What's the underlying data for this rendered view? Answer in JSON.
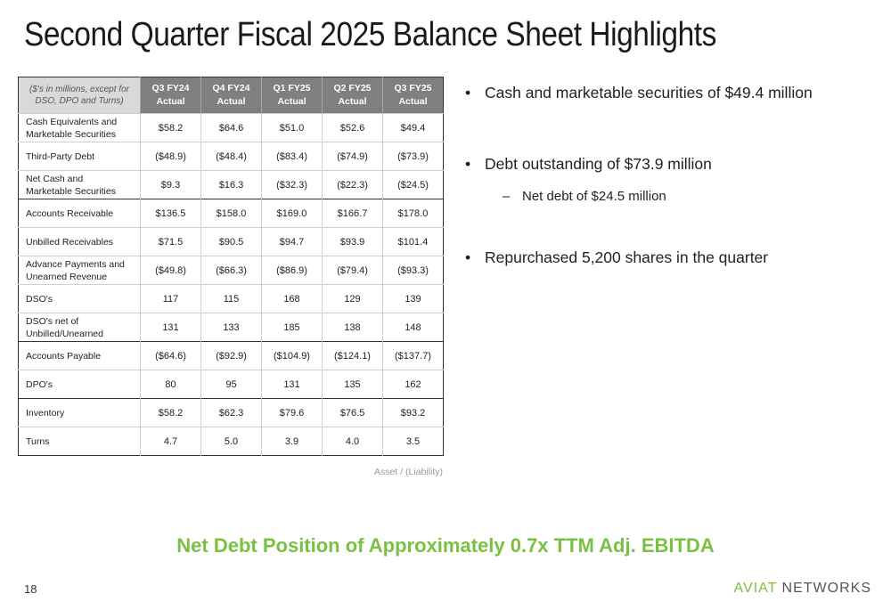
{
  "title": "Second Quarter Fiscal 2025 Balance Sheet Highlights",
  "table": {
    "corner": [
      "($'s in millions, except for",
      "DSO, DPO and Turns)"
    ],
    "columns": [
      {
        "line1": "Q3 FY24",
        "line2": "Actual"
      },
      {
        "line1": "Q4 FY24",
        "line2": "Actual"
      },
      {
        "line1": "Q1 FY25",
        "line2": "Actual"
      },
      {
        "line1": "Q2 FY25",
        "line2": "Actual"
      },
      {
        "line1": "Q3 FY25",
        "line2": "Actual"
      }
    ],
    "rows": [
      {
        "label": [
          "Cash Equivalents and",
          "Marketable Securities"
        ],
        "values": [
          "$58.2",
          "$64.6",
          "$51.0",
          "$52.6",
          "$49.4"
        ],
        "sep": false
      },
      {
        "label": [
          "Third-Party Debt"
        ],
        "values": [
          "($48.9)",
          "($48.4)",
          "($83.4)",
          "($74.9)",
          "($73.9)"
        ],
        "sep": false
      },
      {
        "label": [
          "Net Cash and",
          "Marketable Securities"
        ],
        "values": [
          "$9.3",
          "$16.3",
          "($32.3)",
          "($22.3)",
          "($24.5)"
        ],
        "sep": false
      },
      {
        "label": [
          "Accounts Receivable"
        ],
        "values": [
          "$136.5",
          "$158.0",
          "$169.0",
          "$166.7",
          "$178.0"
        ],
        "sep": true
      },
      {
        "label": [
          "Unbilled Receivables"
        ],
        "values": [
          "$71.5",
          "$90.5",
          "$94.7",
          "$93.9",
          "$101.4"
        ],
        "sep": false
      },
      {
        "label": [
          "Advance Payments and",
          "Unearned Revenue"
        ],
        "values": [
          "($49.8)",
          "($66.3)",
          "($86.9)",
          "($79.4)",
          "($93.3)"
        ],
        "sep": false
      },
      {
        "label": [
          "DSO's"
        ],
        "values": [
          "117",
          "115",
          "168",
          "129",
          "139"
        ],
        "sep": false
      },
      {
        "label": [
          "DSO's net of",
          "Unbilled/Unearned"
        ],
        "values": [
          "131",
          "133",
          "185",
          "138",
          "148"
        ],
        "sep": false
      },
      {
        "label": [
          "Accounts Payable"
        ],
        "values": [
          "($64.6)",
          "($92.9)",
          "($104.9)",
          "($124.1)",
          "($137.7)"
        ],
        "sep": true
      },
      {
        "label": [
          "DPO's"
        ],
        "values": [
          "80",
          "95",
          "131",
          "135",
          "162"
        ],
        "sep": false
      },
      {
        "label": [
          "Inventory"
        ],
        "values": [
          "$58.2",
          "$62.3",
          "$79.6",
          "$76.5",
          "$93.2"
        ],
        "sep": true
      },
      {
        "label": [
          "Turns"
        ],
        "values": [
          "4.7",
          "5.0",
          "3.9",
          "4.0",
          "3.5"
        ],
        "sep": false
      }
    ]
  },
  "note": "Asset / (Liability)",
  "bullets": {
    "b1": "Cash and marketable securities of $49.4 million",
    "b2": "Debt outstanding of $73.9 million",
    "b2_sub": "Net debt of $24.5 million",
    "b3": "Repurchased 5,200 shares in the quarter",
    "bullet_glyph": "•",
    "dash_glyph": "–"
  },
  "headline": "Net Debt Position of Approximately 0.7x TTM Adj. EBITDA",
  "page_number": "18",
  "logo": {
    "part1": "AVIAT",
    "part2": " NETWORKS"
  },
  "colors": {
    "accent_green": "#7ac143",
    "header_gray": "#7f7f7f"
  }
}
